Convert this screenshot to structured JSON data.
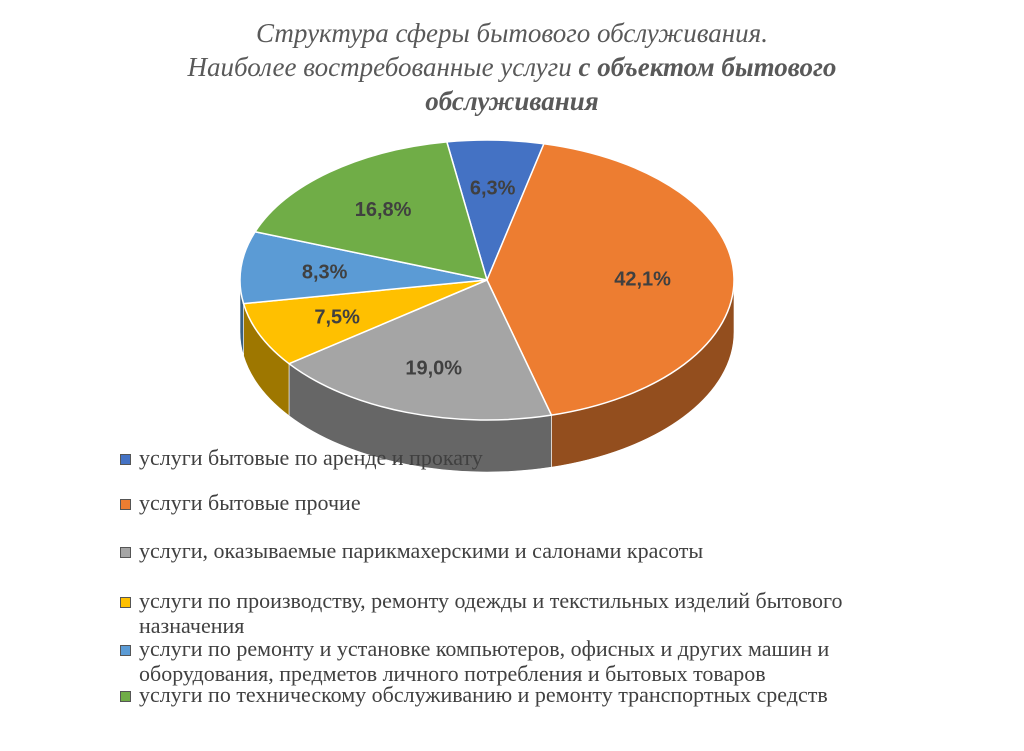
{
  "chart_data": {
    "type": "pie",
    "title_lines": [
      "Структура сферы бытового обслуживания.",
      "Наиболее востребованные услуги",
      "с объектом бытового",
      "обслуживания"
    ],
    "slices": [
      {
        "label": "услуги бытовые по аренде и прокату",
        "value": 6.3,
        "value_label": "6,3%",
        "color": "#4472c4"
      },
      {
        "label": "услуги бытовые прочие",
        "value": 42.1,
        "value_label": "42,1%",
        "color": "#ed7d31"
      },
      {
        "label": "услуги, оказываемые парикмахерскими и салонами красоты",
        "value": 19.0,
        "value_label": "19,0%",
        "color": "#a5a5a5"
      },
      {
        "label": "услуги по производству, ремонту одежды и текстильных изделий бытового назначения",
        "value": 7.5,
        "value_label": "7,5%",
        "color": "#ffc000"
      },
      {
        "label": "услуги по ремонту и установке компьютеров, офисных и других машин и оборудования, предметов личного потребления и бытовых товаров",
        "value": 8.3,
        "value_label": "8,3%",
        "color": "#5b9bd5"
      },
      {
        "label": "услуги по техническому обслуживанию и ремонту транспортных средств",
        "value": 16.8,
        "value_label": "16,8%",
        "color": "#70ad47"
      }
    ],
    "legend_position": "bottom",
    "style": "3d-pie"
  }
}
